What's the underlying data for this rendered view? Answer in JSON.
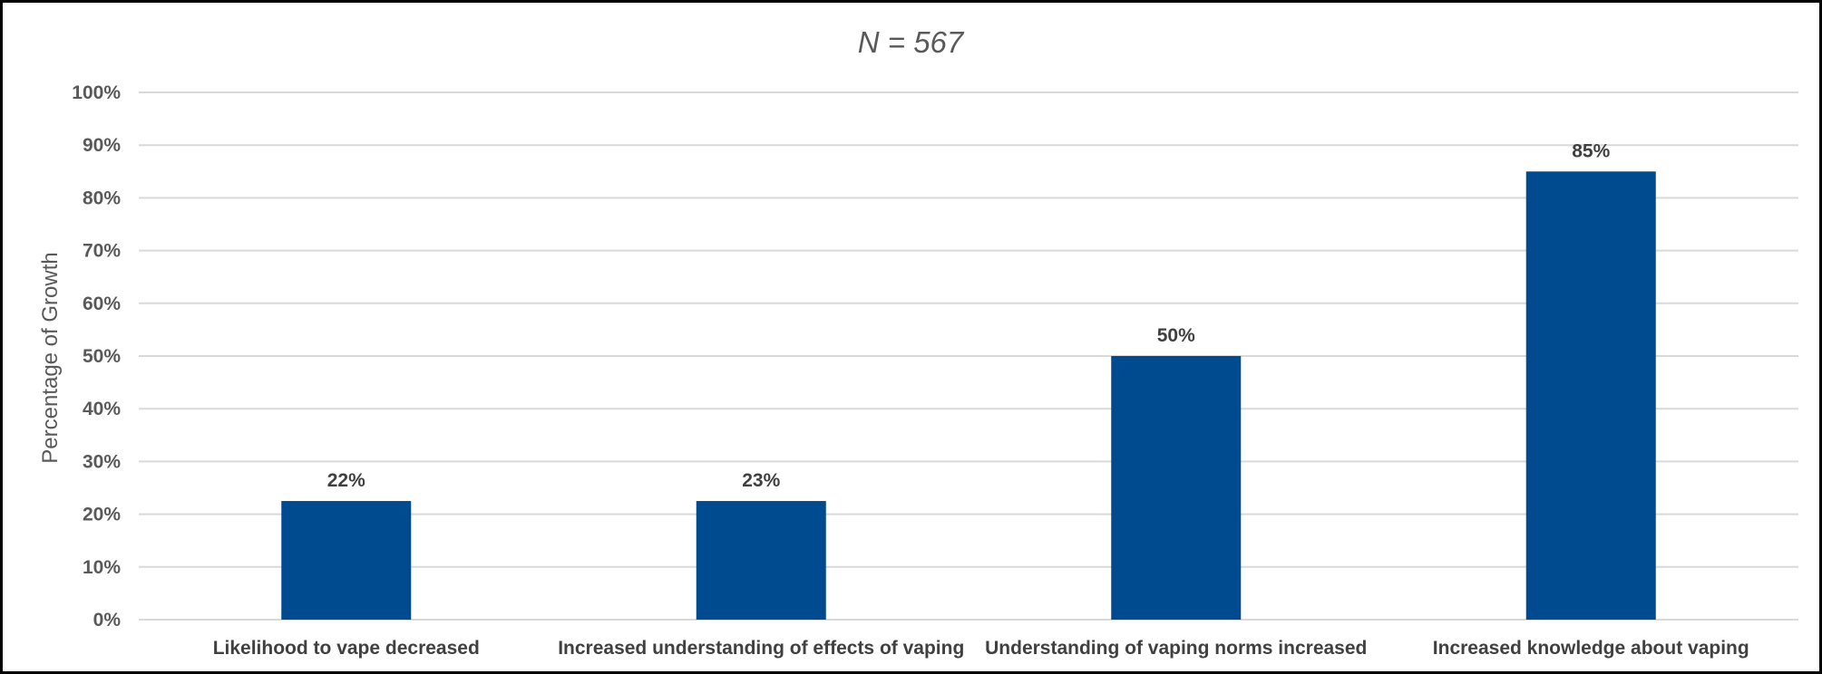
{
  "chart_data": {
    "type": "bar",
    "title": "N = 567",
    "xlabel": "",
    "ylabel": "Percentage of Growth",
    "categories": [
      "Likelihood to vape decreased",
      "Increased understanding of effects of vaping",
      "Understanding of vaping norms increased",
      "Increased knowledge about vaping"
    ],
    "values": [
      22.5,
      22.5,
      50,
      85
    ],
    "data_labels": [
      "22%",
      "23%",
      "50%",
      "85%"
    ],
    "ylim": [
      0,
      100
    ],
    "yticks": [
      "0%",
      "10%",
      "20%",
      "30%",
      "40%",
      "50%",
      "60%",
      "70%",
      "80%",
      "90%",
      "100%"
    ],
    "grid": true,
    "legend": "none",
    "bar_color": "#004A8F"
  }
}
